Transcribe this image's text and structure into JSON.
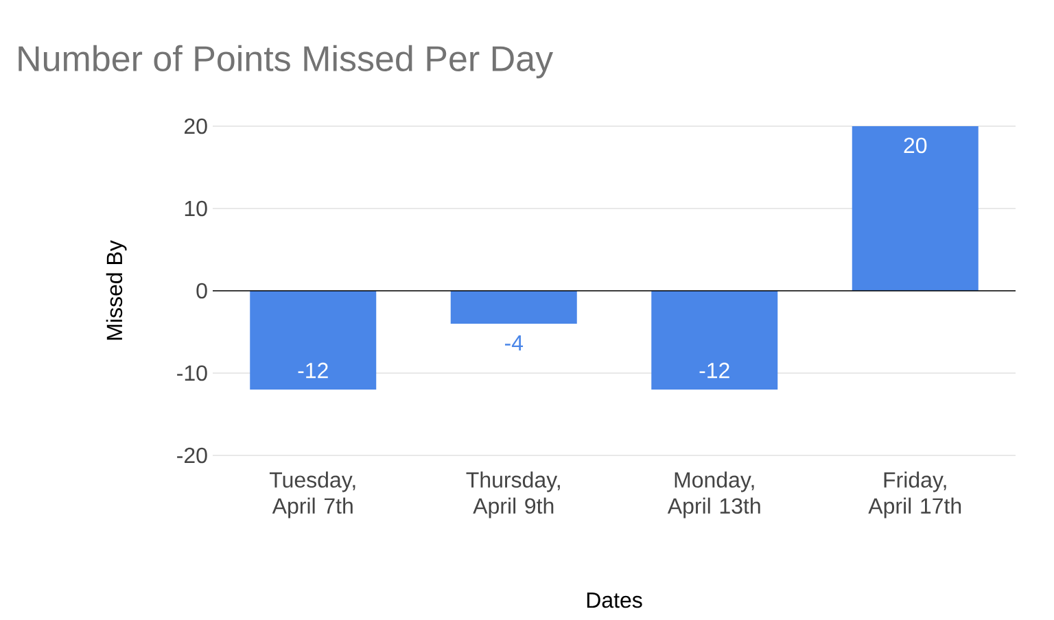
{
  "chart_data": {
    "type": "bar",
    "title": "Number of Points Missed Per Day",
    "xlabel": "Dates",
    "ylabel": "Missed By",
    "categories": [
      "Tuesday, April 7th",
      "Thursday, April 9th",
      "Monday, April 13th",
      "Friday, April 17th"
    ],
    "values": [
      -12,
      -4,
      -12,
      20
    ],
    "color": "#4a86e8",
    "ylim": [
      -20,
      20
    ],
    "yticks": [
      -20,
      -10,
      0,
      10,
      20
    ],
    "grid": "y",
    "data_labels": true
  }
}
